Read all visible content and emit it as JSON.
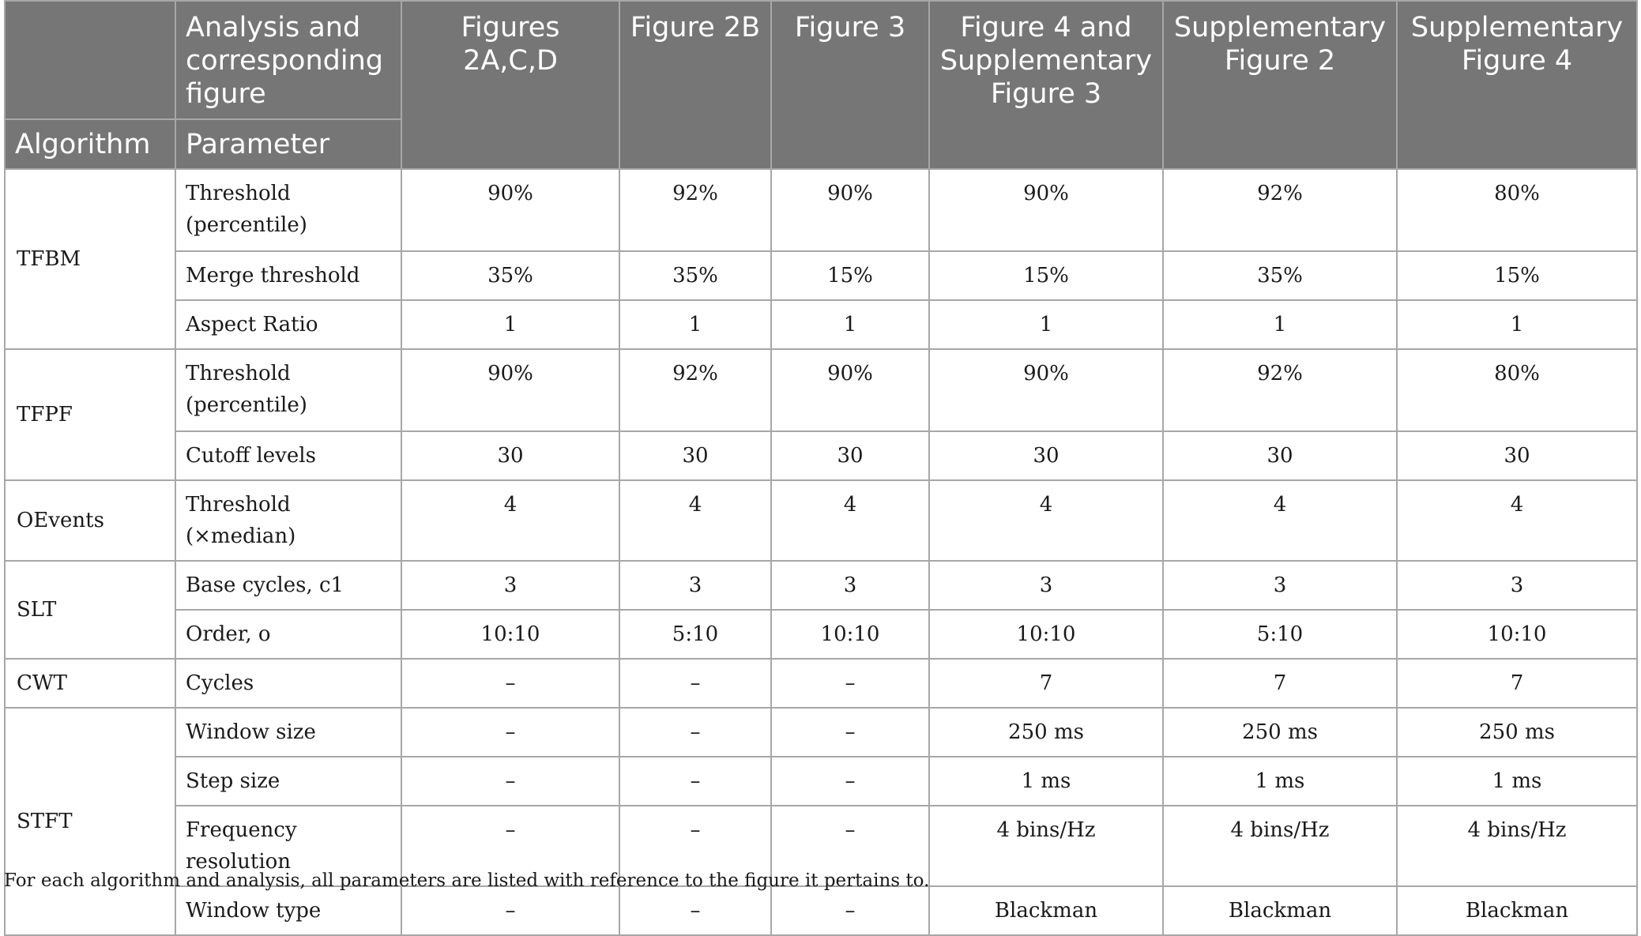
{
  "header": {
    "col1_bottom": "Algorithm",
    "col2_top": "Analysis and corresponding figure",
    "col2_bottom": "Parameter",
    "figures": [
      "Figures 2A,C,D",
      "Figure 2B",
      "Figure 3",
      "Figure 4 and Supplementary Figure 3",
      "Supplementary Figure 2",
      "Supplementary Figure 4"
    ]
  },
  "rows": [
    {
      "algorithm": "TFBM",
      "parameter": "Threshold (percentile)",
      "values": [
        "90%",
        "92%",
        "90%",
        "90%",
        "92%",
        "80%"
      ]
    },
    {
      "algorithm": "TFBM",
      "parameter": "Merge threshold",
      "values": [
        "35%",
        "35%",
        "15%",
        "15%",
        "35%",
        "15%"
      ]
    },
    {
      "algorithm": "TFBM",
      "parameter": "Aspect Ratio",
      "values": [
        "1",
        "1",
        "1",
        "1",
        "1",
        "1"
      ]
    },
    {
      "algorithm": "TFPF",
      "parameter": "Threshold (percentile)",
      "values": [
        "90%",
        "92%",
        "90%",
        "90%",
        "92%",
        "80%"
      ]
    },
    {
      "algorithm": "TFPF",
      "parameter": "Cutoff levels",
      "values": [
        "30",
        "30",
        "30",
        "30",
        "30",
        "30"
      ]
    },
    {
      "algorithm": "OEvents",
      "parameter": "Threshold (×median)",
      "values": [
        "4",
        "4",
        "4",
        "4",
        "4",
        "4"
      ]
    },
    {
      "algorithm": "SLT",
      "parameter": "Base cycles, c1",
      "values": [
        "3",
        "3",
        "3",
        "3",
        "3",
        "3"
      ]
    },
    {
      "algorithm": "SLT",
      "parameter": "Order, o",
      "values": [
        "10:10",
        "5:10",
        "10:10",
        "10:10",
        "5:10",
        "10:10"
      ]
    },
    {
      "algorithm": "CWT",
      "parameter": "Cycles",
      "values": [
        "–",
        "–",
        "–",
        "7",
        "7",
        "7"
      ]
    },
    {
      "algorithm": "STFT",
      "parameter": "Window size",
      "values": [
        "–",
        "–",
        "–",
        "250 ms",
        "250 ms",
        "250 ms"
      ]
    },
    {
      "algorithm": "STFT",
      "parameter": "Step size",
      "values": [
        "–",
        "–",
        "–",
        "1 ms",
        "1 ms",
        "1 ms"
      ]
    },
    {
      "algorithm": "STFT",
      "parameter": "Frequency resolution",
      "values": [
        "–",
        "–",
        "–",
        "4 bins/Hz",
        "4 bins/Hz",
        "4 bins/Hz"
      ]
    },
    {
      "algorithm": "STFT",
      "parameter": "Window type",
      "values": [
        "–",
        "–",
        "–",
        "Blackman",
        "Blackman",
        "Blackman"
      ]
    }
  ],
  "caption": "For each algorithm and analysis, all parameters are listed with reference to the figure it pertains to."
}
